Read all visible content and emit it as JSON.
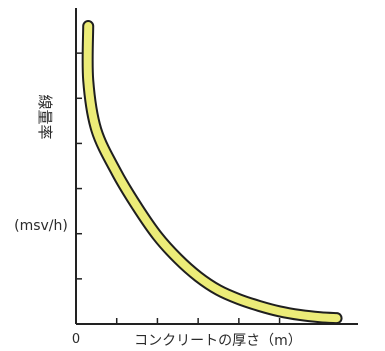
{
  "chart_data": {
    "type": "line",
    "title": "",
    "xlabel": "コンクリートの厚さ（m）",
    "ylabel": "線量率",
    "yunit": "(msv/h)",
    "origin_label": "0",
    "xlim": [
      0,
      7
    ],
    "ylim": [
      0,
      7
    ],
    "grid": false,
    "series": [
      {
        "x": [
          0.3,
          0.3,
          0.5,
          1.0,
          1.5,
          2.0,
          2.5,
          3.0,
          3.5,
          4.0,
          4.5,
          5.0,
          5.5,
          6.0,
          6.4
        ],
        "y": [
          6.6,
          5.4,
          4.3,
          3.35,
          2.6,
          1.95,
          1.45,
          1.05,
          0.75,
          0.55,
          0.4,
          0.28,
          0.2,
          0.15,
          0.13
        ]
      }
    ],
    "colors": {
      "curve": "#ecec78",
      "curve_edge": "#1f1f1f",
      "axis": "#222222"
    }
  }
}
